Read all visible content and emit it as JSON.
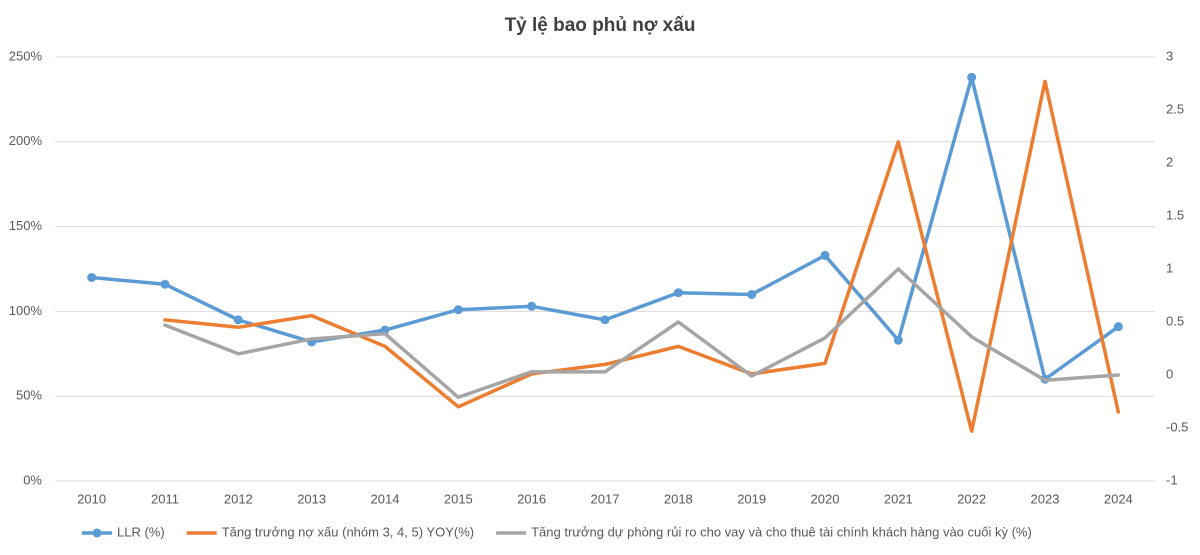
{
  "chart_data": {
    "type": "line",
    "title": "Tỷ lệ bao phủ nợ xấu",
    "categories": [
      "2010",
      "2011",
      "2012",
      "2013",
      "2014",
      "2015",
      "2016",
      "2017",
      "2018",
      "2019",
      "2020",
      "2021",
      "2022",
      "2023",
      "2024"
    ],
    "series": [
      {
        "name": "LLR (%)",
        "color": "#5b9bd5",
        "marker": true,
        "values": [
          120,
          116,
          95,
          82,
          89,
          101,
          103,
          95,
          111,
          110,
          133,
          83,
          238,
          60,
          91
        ]
      },
      {
        "name": "Tăng trưởng nợ xấu (nhóm 3, 4, 5) YOY(%)",
        "color": "#ed7d31",
        "marker": false,
        "axis": "y2",
        "values": [
          null,
          0.52,
          0.45,
          0.56,
          0.27,
          -0.3,
          0.01,
          0.1,
          0.27,
          0.01,
          0.11,
          2.2,
          -0.53,
          2.77,
          -0.35
        ]
      },
      {
        "name": "Tăng trưởng dự phòng rủi ro cho vay và cho thuê tài chính khách hàng vào cuối kỳ (%)",
        "color": "#a5a5a5",
        "marker": false,
        "axis": "y2",
        "values": [
          null,
          0.47,
          0.2,
          0.34,
          0.39,
          -0.21,
          0.03,
          0.03,
          0.5,
          -0.01,
          0.35,
          1.0,
          0.36,
          -0.05,
          0
        ]
      }
    ],
    "ylim": [
      0,
      250
    ],
    "yticks": [
      {
        "value": 0,
        "label": "0%"
      },
      {
        "value": 50,
        "label": "50%"
      },
      {
        "value": 100,
        "label": "100%"
      },
      {
        "value": 150,
        "label": "150%"
      },
      {
        "value": 200,
        "label": "200%"
      },
      {
        "value": 250,
        "label": "250%"
      }
    ],
    "y2lim": [
      -1,
      3
    ],
    "y2ticks": [
      -1,
      -0.5,
      0,
      0.5,
      1,
      1.5,
      2,
      2.5,
      3
    ],
    "grid": true,
    "legend": "bottom"
  }
}
